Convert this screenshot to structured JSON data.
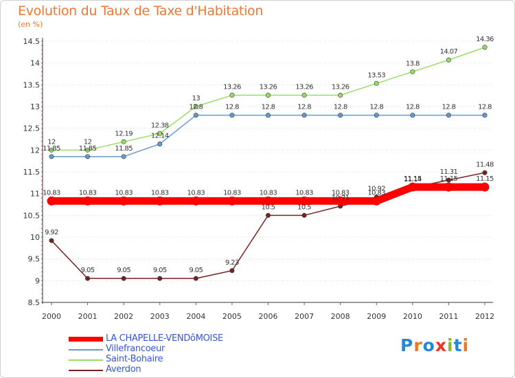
{
  "title": "Evolution du Taux de Taxe d'Habitation",
  "subtitle": "(en %)",
  "logo_text": "Proxiti",
  "chart_data": {
    "type": "line",
    "x": [
      "2000",
      "2001",
      "2002",
      "2003",
      "2004",
      "2005",
      "2006",
      "2007",
      "2008",
      "2009",
      "2010",
      "2011",
      "2012"
    ],
    "ylim": [
      8.5,
      14.5
    ],
    "yticks": [
      "8.5",
      "9",
      "9.5",
      "10",
      "10.5",
      "11",
      "11.5",
      "12",
      "12.5",
      "13",
      "13.5",
      "14",
      "14.5"
    ],
    "grid": "horizontal-dotted",
    "legend_position": "bottom-left",
    "series": [
      {
        "name": "LA CHAPELLE-VENDôMOISE",
        "color": "#ff0000",
        "values": [
          10.83,
          10.83,
          10.83,
          10.83,
          10.83,
          10.83,
          10.83,
          10.83,
          10.83,
          10.83,
          11.15,
          11.15,
          11.15
        ],
        "labels": [
          "10.83",
          "10.83",
          "10.83",
          "10.83",
          "10.83",
          "10.83",
          "10.83",
          "10.83",
          "10.83",
          "10.83",
          "11.15",
          "11.15",
          "11.15"
        ]
      },
      {
        "name": "Villefrancoeur",
        "color": "#6699cc",
        "values": [
          11.85,
          11.85,
          11.85,
          12.14,
          12.8,
          12.8,
          12.8,
          12.8,
          12.8,
          12.8,
          12.8,
          12.8,
          12.8
        ],
        "labels": [
          "11.85",
          "11.85",
          "11.85",
          "12.14",
          "12.8",
          "12.8",
          "12.8",
          "12.8",
          "12.8",
          "12.8",
          "12.8",
          "12.8",
          "12.8"
        ]
      },
      {
        "name": "Saint-Bohaire",
        "color": "#99dd66",
        "values": [
          12,
          12,
          12.19,
          12.38,
          13,
          13.26,
          13.26,
          13.26,
          13.26,
          13.53,
          13.8,
          14.07,
          14.36
        ],
        "labels": [
          "12",
          "12",
          "12.19",
          "12.38",
          "13",
          "13.26",
          "13.26",
          "13.26",
          "13.26",
          "13.53",
          "13.8",
          "14.07",
          "14.36"
        ]
      },
      {
        "name": "Averdon",
        "color": "#772222",
        "values": [
          9.92,
          9.05,
          9.05,
          9.05,
          9.05,
          9.23,
          10.5,
          10.5,
          10.71,
          10.92,
          11.14,
          11.31,
          11.48
        ],
        "labels": [
          "9.92",
          "9.05",
          "9.05",
          "9.05",
          "9.05",
          "9.23",
          "10.5",
          "10.5",
          "10.71",
          "10.92",
          "11.14",
          "11.31",
          "11.48"
        ]
      }
    ]
  }
}
